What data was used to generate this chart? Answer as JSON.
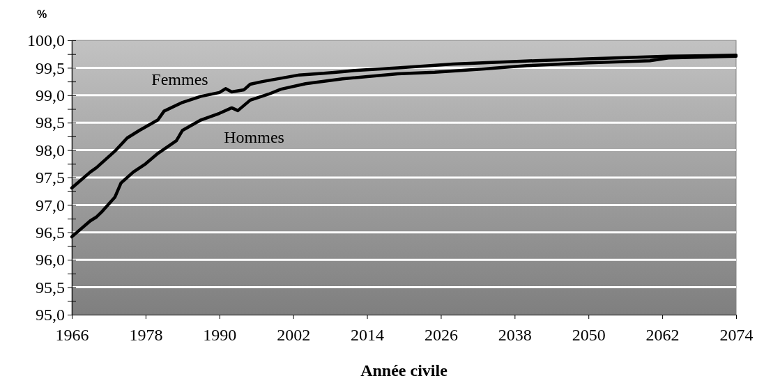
{
  "chart_data": {
    "type": "line",
    "xlabel": "Année civile",
    "ylabel": "%",
    "xlim": [
      1966,
      2074
    ],
    "xticks": [
      1966,
      1978,
      1990,
      2002,
      2014,
      2026,
      2038,
      2050,
      2062,
      2074
    ],
    "ylim": [
      95,
      100
    ],
    "yticks": [
      {
        "value": 95,
        "label": "95,0"
      },
      {
        "value": 95.25,
        "label": null
      },
      {
        "value": 95.5,
        "label": "95,5"
      },
      {
        "value": 95.75,
        "label": null
      },
      {
        "value": 96,
        "label": "96,0"
      },
      {
        "value": 96.25,
        "label": null
      },
      {
        "value": 96.5,
        "label": "96,5"
      },
      {
        "value": 96.75,
        "label": null
      },
      {
        "value": 97,
        "label": "97,0"
      },
      {
        "value": 97.25,
        "label": null
      },
      {
        "value": 97.5,
        "label": "97,5"
      },
      {
        "value": 97.75,
        "label": null
      },
      {
        "value": 98,
        "label": "98,0"
      },
      {
        "value": 98.25,
        "label": null
      },
      {
        "value": 98.5,
        "label": "98,5"
      },
      {
        "value": 98.75,
        "label": null
      },
      {
        "value": 99,
        "label": "99,0"
      },
      {
        "value": 99.25,
        "label": null
      },
      {
        "value": 99.5,
        "label": "99,5"
      },
      {
        "value": 99.75,
        "label": null
      },
      {
        "value": 100,
        "label": "100,0"
      }
    ],
    "grid": "y",
    "legend": false,
    "marker": "none",
    "line_style": "solid",
    "series": [
      {
        "name": "Femmes",
        "color": "#000000",
        "x": [
          1966,
          1969,
          1970,
          1973,
          1975,
          1977,
          1980,
          1981,
          1984,
          1987,
          1990,
          1991,
          1992,
          1994,
          1995,
          1997,
          2000,
          2003,
          2007,
          2010,
          2012,
          2019,
          2028,
          2039,
          2049,
          2063,
          2074
        ],
        "values": [
          97.31,
          97.6,
          97.68,
          97.98,
          98.22,
          98.36,
          98.55,
          98.71,
          98.87,
          98.98,
          99.05,
          99.12,
          99.06,
          99.1,
          99.2,
          99.25,
          99.31,
          99.37,
          99.4,
          99.43,
          99.45,
          99.5,
          99.57,
          99.62,
          99.66,
          99.71,
          99.73
        ]
      },
      {
        "name": "Hommes",
        "color": "#000000",
        "x": [
          1966,
          1969,
          1970,
          1971,
          1973,
          1974,
          1976,
          1978,
          1980,
          1983,
          1984,
          1987,
          1990,
          1992,
          1993,
          1995,
          1998,
          2000,
          2004,
          2010,
          2019,
          2025,
          2033,
          2040,
          2050,
          2060,
          2063,
          2074
        ],
        "values": [
          96.42,
          96.71,
          96.78,
          96.89,
          97.14,
          97.4,
          97.6,
          97.75,
          97.94,
          98.17,
          98.36,
          98.55,
          98.67,
          98.77,
          98.72,
          98.91,
          99.02,
          99.11,
          99.21,
          99.3,
          99.39,
          99.42,
          99.48,
          99.54,
          99.59,
          99.63,
          99.68,
          99.71
        ]
      }
    ]
  }
}
